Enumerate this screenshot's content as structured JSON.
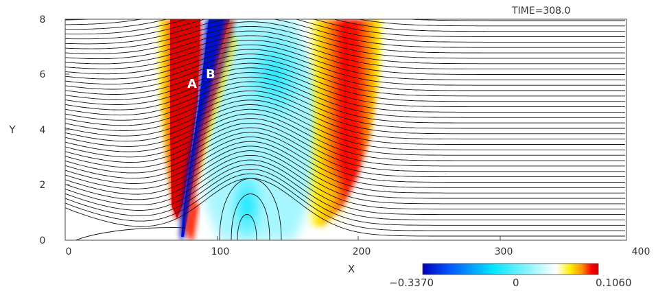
{
  "chart_data": {
    "type": "heatmap",
    "title": "TIME=308.0",
    "xlabel": "X",
    "ylabel": "Y",
    "xlim": [
      0,
      400
    ],
    "ylim": [
      0,
      8
    ],
    "x_ticks": [
      "0",
      "100",
      "200",
      "300",
      "400"
    ],
    "y_ticks": [
      "0",
      "2",
      "4",
      "6",
      "8"
    ],
    "annotations": [
      {
        "text": "A",
        "x": 86,
        "y": 5.6
      },
      {
        "text": "B",
        "x": 97,
        "y": 5.9
      }
    ],
    "colorbar": {
      "min_label": "−0.3370",
      "mid_label": "0",
      "max_label": "0.1060",
      "min": -0.337,
      "max": 0.106,
      "colors": [
        "#0000bb",
        "#0055ff",
        "#00e5ff",
        "#ffffff",
        "#ffee00",
        "#ff8800",
        "#ff0000",
        "#cc0000"
      ]
    },
    "overlay": "field lines (contours)"
  }
}
